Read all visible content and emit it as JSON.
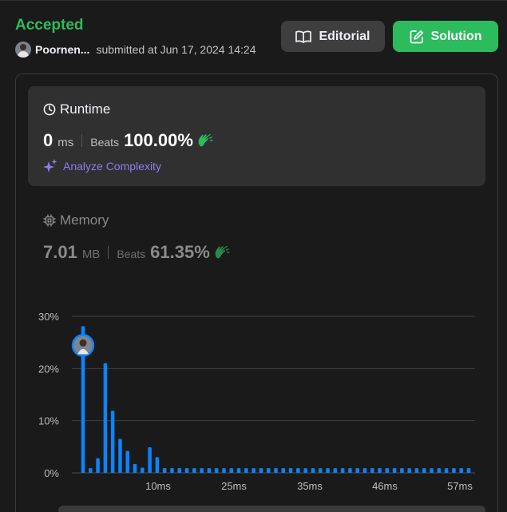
{
  "submission": {
    "status": "Accepted",
    "user_name": "Poornen...",
    "submitted_text": "submitted at Jun 17, 2024 14:24"
  },
  "buttons": {
    "editorial_label": "Editorial",
    "solution_label": "Solution"
  },
  "runtime": {
    "title": "Runtime",
    "value": "0",
    "unit": "ms",
    "beats_label": "Beats",
    "beats_value": "100.00%",
    "analyze_label": "Analyze Complexity"
  },
  "memory": {
    "title": "Memory",
    "value": "7.01",
    "unit": "MB",
    "beats_label": "Beats",
    "beats_value": "61.35%"
  },
  "colors": {
    "accepted": "#2cbb5d",
    "bar": "#0a84ff",
    "analyze": "#8e7cf0"
  },
  "chart_data": {
    "type": "bar",
    "ylim": [
      0,
      30
    ],
    "y_ticks": [
      "0%",
      "10%",
      "20%",
      "30%"
    ],
    "x_ticks": [
      "10ms",
      "25ms",
      "35ms",
      "46ms",
      "57ms"
    ],
    "highlight_index": 0,
    "values": [
      28.1,
      0.9,
      2.8,
      21.0,
      11.9,
      6.5,
      4.2,
      1.7,
      1.0,
      4.9,
      3.0,
      0.9,
      0.9,
      0.9,
      0.9,
      0.9,
      0.9,
      0.9,
      0.9,
      0.9,
      0.9,
      0.9,
      0.9,
      0.9,
      0.9,
      0.9,
      0.9,
      0.9,
      0.9,
      0.9,
      0.9,
      0.9,
      0.9,
      0.9,
      0.9,
      0.9,
      0.9,
      0.9,
      0.9,
      0.9,
      0.9,
      0.9,
      0.9,
      0.9,
      0.9,
      0.9,
      0.9,
      0.9,
      0.9,
      0.9,
      0.9,
      0.9,
      0.9
    ]
  }
}
